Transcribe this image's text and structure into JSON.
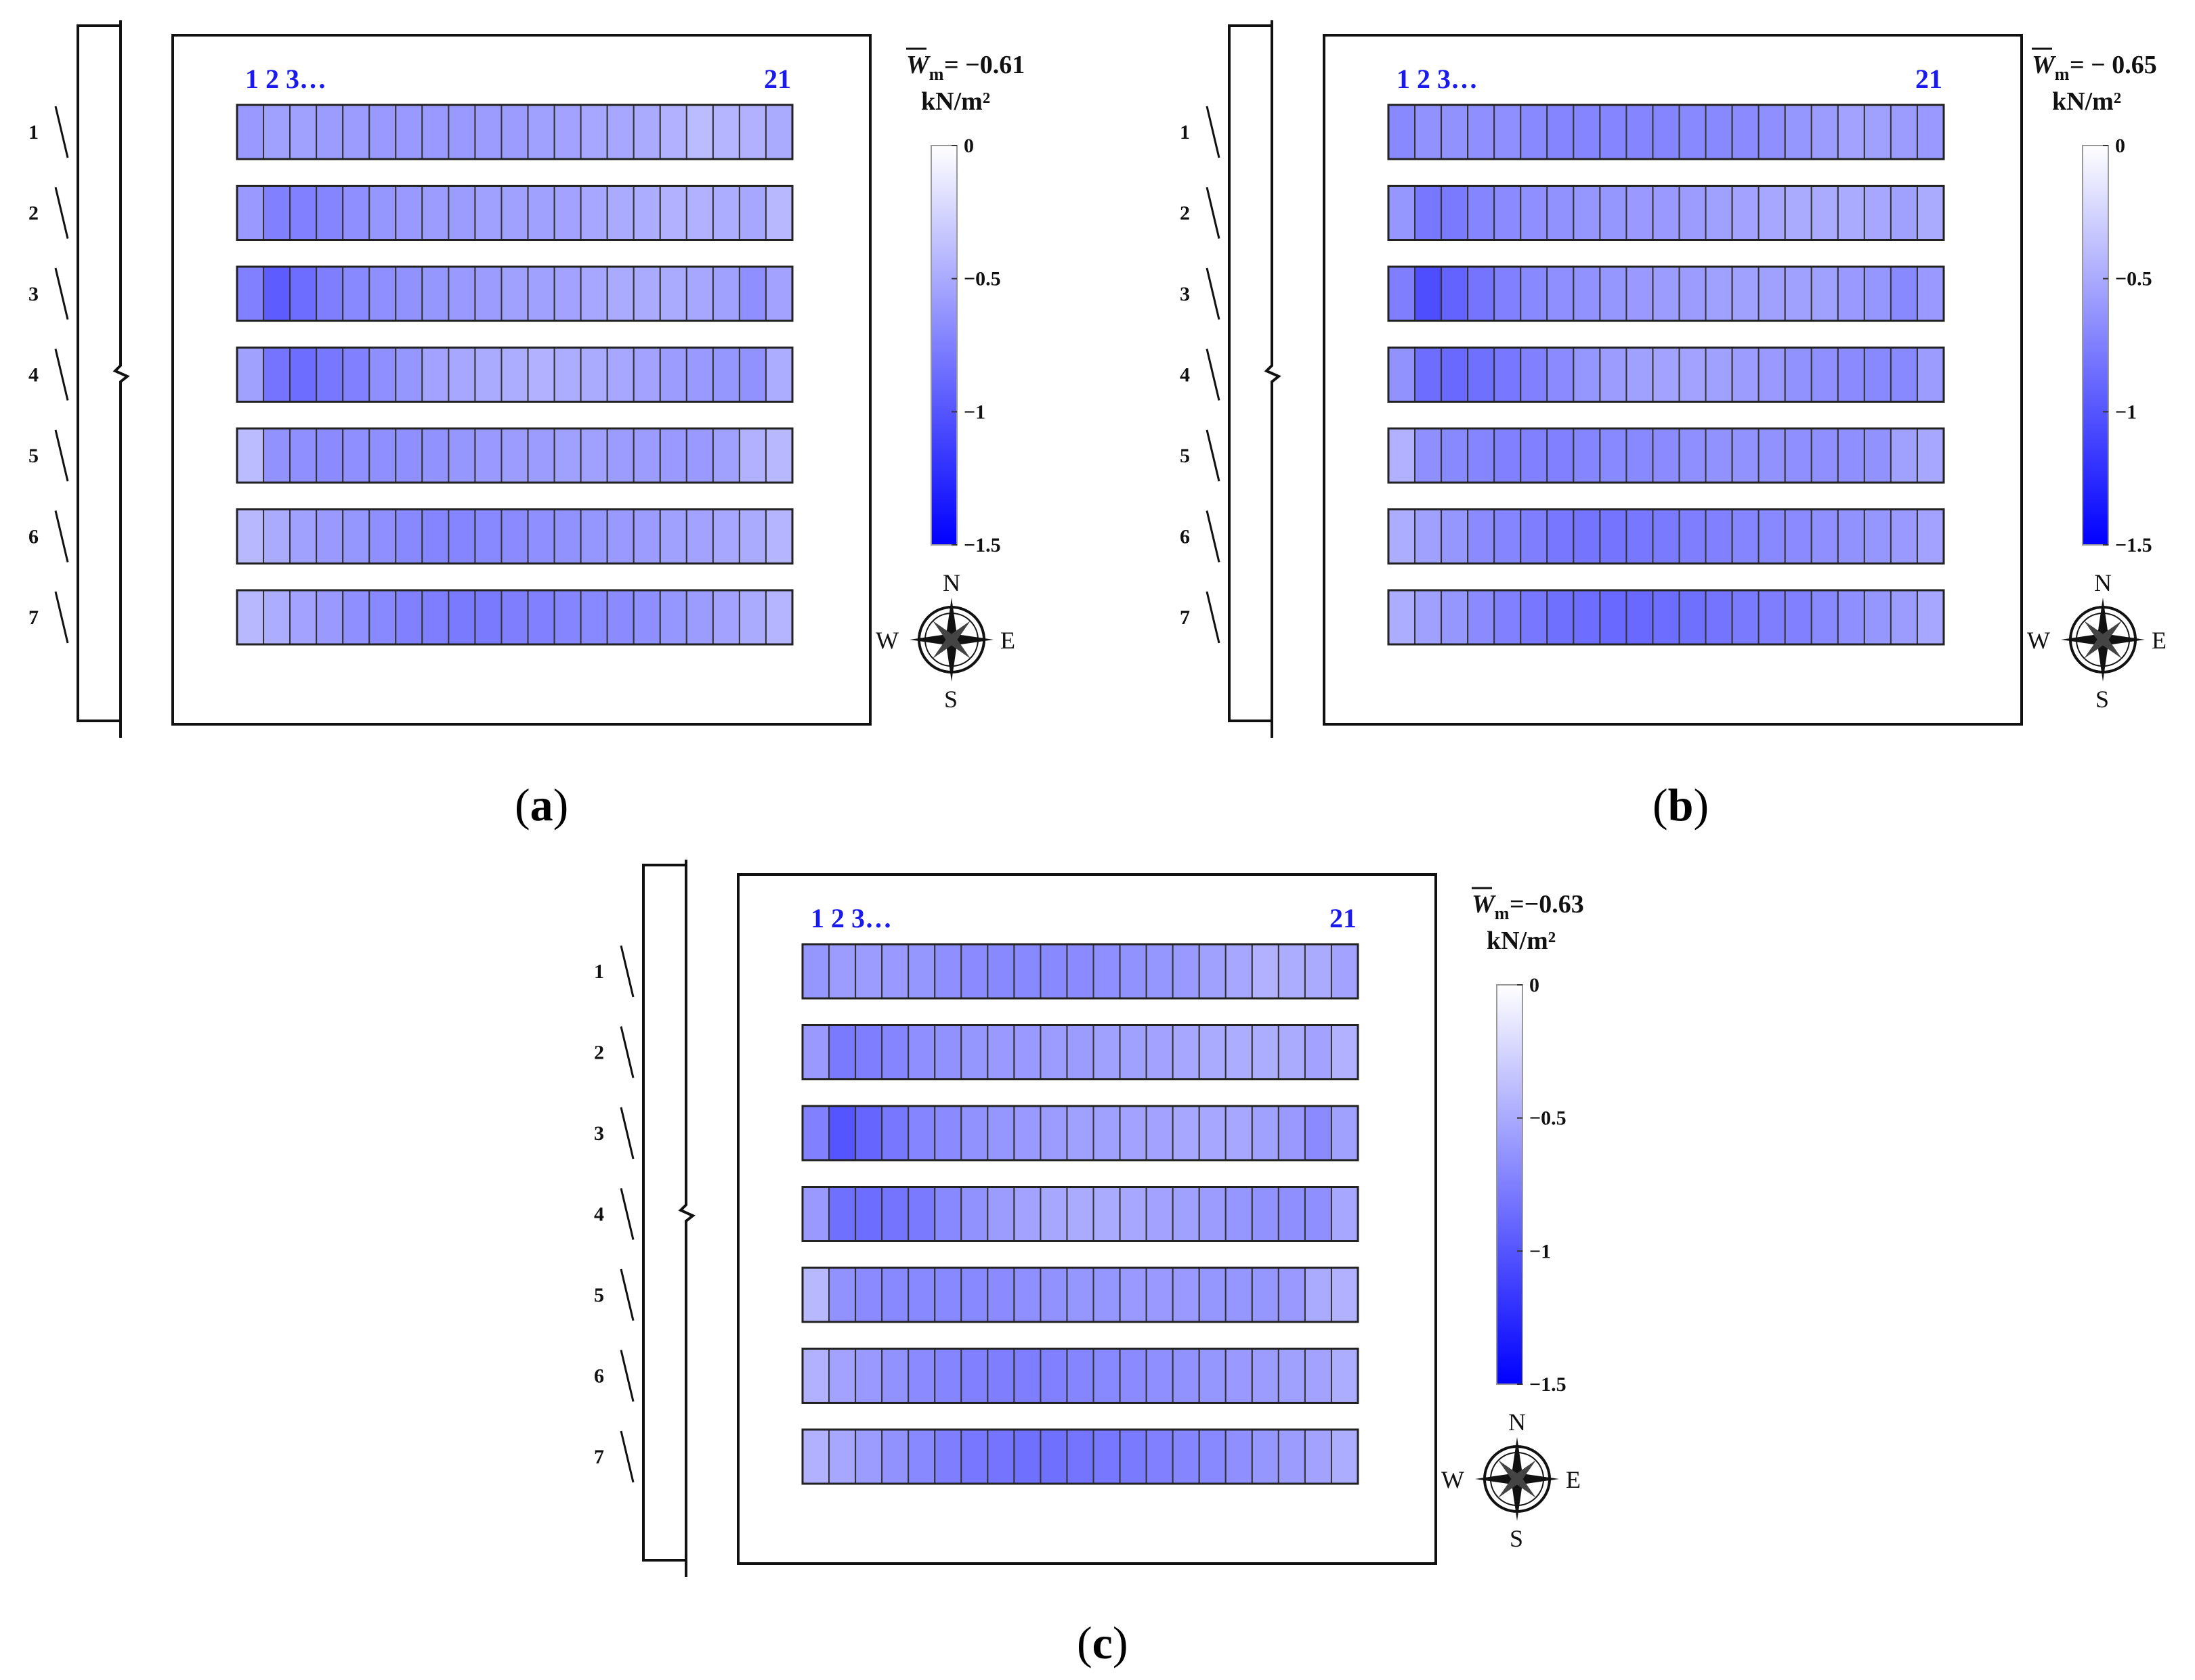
{
  "colors": {
    "zero": "#ffffff",
    "min": "#0000ff",
    "accent_labels": "#1a1aee"
  },
  "colorbar": {
    "min": -1.5,
    "max": 0,
    "ticks": [
      "0",
      "−0.5",
      "−1",
      "−1.5"
    ]
  },
  "compass": {
    "n": "N",
    "s": "S",
    "e": "E",
    "w": "W"
  },
  "column_labels": {
    "first": "1 2 3…",
    "last": "21"
  },
  "row_labels": [
    "1",
    "2",
    "3",
    "4",
    "5",
    "6",
    "7"
  ],
  "chart_data": [
    {
      "type": "heatmap",
      "panel": "(a)",
      "caption_letter": "a",
      "wm_value": "= −0.61",
      "wm_unit": "kN/m²",
      "columns": 21,
      "values": [
        [
          -0.6,
          -0.56,
          -0.56,
          -0.58,
          -0.58,
          -0.6,
          -0.6,
          -0.6,
          -0.6,
          -0.58,
          -0.58,
          -0.56,
          -0.54,
          -0.52,
          -0.52,
          -0.5,
          -0.46,
          -0.4,
          -0.44,
          -0.46,
          -0.5
        ],
        [
          -0.6,
          -0.74,
          -0.74,
          -0.72,
          -0.66,
          -0.62,
          -0.6,
          -0.58,
          -0.58,
          -0.56,
          -0.56,
          -0.56,
          -0.54,
          -0.52,
          -0.5,
          -0.48,
          -0.46,
          -0.46,
          -0.48,
          -0.52,
          -0.42
        ],
        [
          -0.74,
          -0.96,
          -0.86,
          -0.76,
          -0.7,
          -0.66,
          -0.64,
          -0.62,
          -0.6,
          -0.58,
          -0.56,
          -0.56,
          -0.54,
          -0.52,
          -0.5,
          -0.5,
          -0.5,
          -0.52,
          -0.56,
          -0.66,
          -0.54
        ],
        [
          -0.56,
          -0.82,
          -0.86,
          -0.8,
          -0.74,
          -0.66,
          -0.62,
          -0.54,
          -0.52,
          -0.5,
          -0.48,
          -0.46,
          -0.48,
          -0.5,
          -0.52,
          -0.54,
          -0.58,
          -0.6,
          -0.62,
          -0.64,
          -0.48
        ],
        [
          -0.4,
          -0.64,
          -0.66,
          -0.68,
          -0.66,
          -0.66,
          -0.66,
          -0.64,
          -0.62,
          -0.6,
          -0.58,
          -0.58,
          -0.56,
          -0.56,
          -0.58,
          -0.58,
          -0.6,
          -0.6,
          -0.56,
          -0.46,
          -0.42
        ],
        [
          -0.42,
          -0.5,
          -0.56,
          -0.6,
          -0.62,
          -0.66,
          -0.7,
          -0.72,
          -0.72,
          -0.7,
          -0.68,
          -0.66,
          -0.64,
          -0.62,
          -0.6,
          -0.58,
          -0.56,
          -0.54,
          -0.52,
          -0.5,
          -0.44
        ],
        [
          -0.42,
          -0.48,
          -0.54,
          -0.6,
          -0.66,
          -0.7,
          -0.74,
          -0.76,
          -0.78,
          -0.78,
          -0.76,
          -0.74,
          -0.72,
          -0.7,
          -0.68,
          -0.66,
          -0.62,
          -0.58,
          -0.54,
          -0.5,
          -0.44
        ]
      ]
    },
    {
      "type": "heatmap",
      "panel": "(b)",
      "caption_letter": "b",
      "wm_value": "= − 0.65",
      "wm_unit": "kN/m²",
      "columns": 21,
      "values": [
        [
          -0.7,
          -0.64,
          -0.64,
          -0.66,
          -0.66,
          -0.7,
          -0.72,
          -0.72,
          -0.72,
          -0.72,
          -0.72,
          -0.7,
          -0.7,
          -0.68,
          -0.66,
          -0.62,
          -0.58,
          -0.54,
          -0.56,
          -0.58,
          -0.6
        ],
        [
          -0.62,
          -0.8,
          -0.78,
          -0.72,
          -0.68,
          -0.66,
          -0.64,
          -0.62,
          -0.62,
          -0.6,
          -0.6,
          -0.58,
          -0.56,
          -0.54,
          -0.52,
          -0.5,
          -0.5,
          -0.5,
          -0.52,
          -0.56,
          -0.5
        ],
        [
          -0.76,
          -1.04,
          -0.92,
          -0.82,
          -0.74,
          -0.7,
          -0.66,
          -0.64,
          -0.62,
          -0.6,
          -0.58,
          -0.58,
          -0.56,
          -0.56,
          -0.56,
          -0.56,
          -0.56,
          -0.6,
          -0.62,
          -0.7,
          -0.6
        ],
        [
          -0.64,
          -0.86,
          -0.88,
          -0.84,
          -0.8,
          -0.74,
          -0.68,
          -0.62,
          -0.58,
          -0.56,
          -0.54,
          -0.54,
          -0.56,
          -0.58,
          -0.6,
          -0.64,
          -0.66,
          -0.68,
          -0.7,
          -0.7,
          -0.58
        ],
        [
          -0.46,
          -0.66,
          -0.7,
          -0.72,
          -0.74,
          -0.74,
          -0.74,
          -0.72,
          -0.7,
          -0.7,
          -0.68,
          -0.66,
          -0.64,
          -0.64,
          -0.64,
          -0.66,
          -0.66,
          -0.66,
          -0.64,
          -0.56,
          -0.52
        ],
        [
          -0.48,
          -0.56,
          -0.62,
          -0.68,
          -0.72,
          -0.76,
          -0.8,
          -0.82,
          -0.82,
          -0.8,
          -0.78,
          -0.76,
          -0.74,
          -0.72,
          -0.7,
          -0.68,
          -0.66,
          -0.64,
          -0.62,
          -0.6,
          -0.54
        ],
        [
          -0.48,
          -0.56,
          -0.62,
          -0.68,
          -0.74,
          -0.8,
          -0.84,
          -0.86,
          -0.88,
          -0.88,
          -0.86,
          -0.84,
          -0.82,
          -0.78,
          -0.76,
          -0.74,
          -0.7,
          -0.66,
          -0.62,
          -0.58,
          -0.52
        ]
      ]
    },
    {
      "type": "heatmap",
      "panel": "(c)",
      "caption_letter": "c",
      "wm_value": "=−0.63",
      "wm_unit": "kN/m²",
      "columns": 21,
      "values": [
        [
          -0.62,
          -0.58,
          -0.58,
          -0.6,
          -0.62,
          -0.66,
          -0.68,
          -0.7,
          -0.7,
          -0.7,
          -0.68,
          -0.66,
          -0.64,
          -0.62,
          -0.6,
          -0.56,
          -0.52,
          -0.46,
          -0.48,
          -0.5,
          -0.54
        ],
        [
          -0.6,
          -0.78,
          -0.76,
          -0.72,
          -0.66,
          -0.64,
          -0.62,
          -0.6,
          -0.6,
          -0.58,
          -0.58,
          -0.56,
          -0.56,
          -0.54,
          -0.52,
          -0.5,
          -0.48,
          -0.48,
          -0.5,
          -0.54,
          -0.46
        ],
        [
          -0.74,
          -1.0,
          -0.9,
          -0.8,
          -0.72,
          -0.68,
          -0.64,
          -0.62,
          -0.6,
          -0.58,
          -0.56,
          -0.56,
          -0.54,
          -0.54,
          -0.52,
          -0.52,
          -0.52,
          -0.56,
          -0.6,
          -0.68,
          -0.56
        ],
        [
          -0.6,
          -0.84,
          -0.86,
          -0.82,
          -0.78,
          -0.7,
          -0.64,
          -0.58,
          -0.54,
          -0.52,
          -0.5,
          -0.5,
          -0.52,
          -0.54,
          -0.56,
          -0.58,
          -0.62,
          -0.64,
          -0.66,
          -0.66,
          -0.52
        ],
        [
          -0.42,
          -0.64,
          -0.68,
          -0.7,
          -0.7,
          -0.7,
          -0.7,
          -0.68,
          -0.66,
          -0.64,
          -0.62,
          -0.62,
          -0.6,
          -0.6,
          -0.6,
          -0.62,
          -0.62,
          -0.62,
          -0.6,
          -0.5,
          -0.46
        ],
        [
          -0.46,
          -0.54,
          -0.6,
          -0.64,
          -0.68,
          -0.72,
          -0.74,
          -0.76,
          -0.76,
          -0.74,
          -0.72,
          -0.7,
          -0.68,
          -0.66,
          -0.64,
          -0.62,
          -0.6,
          -0.58,
          -0.56,
          -0.54,
          -0.48
        ],
        [
          -0.46,
          -0.52,
          -0.58,
          -0.64,
          -0.7,
          -0.76,
          -0.8,
          -0.82,
          -0.84,
          -0.84,
          -0.82,
          -0.8,
          -0.78,
          -0.74,
          -0.72,
          -0.7,
          -0.66,
          -0.62,
          -0.58,
          -0.54,
          -0.48
        ]
      ]
    }
  ]
}
